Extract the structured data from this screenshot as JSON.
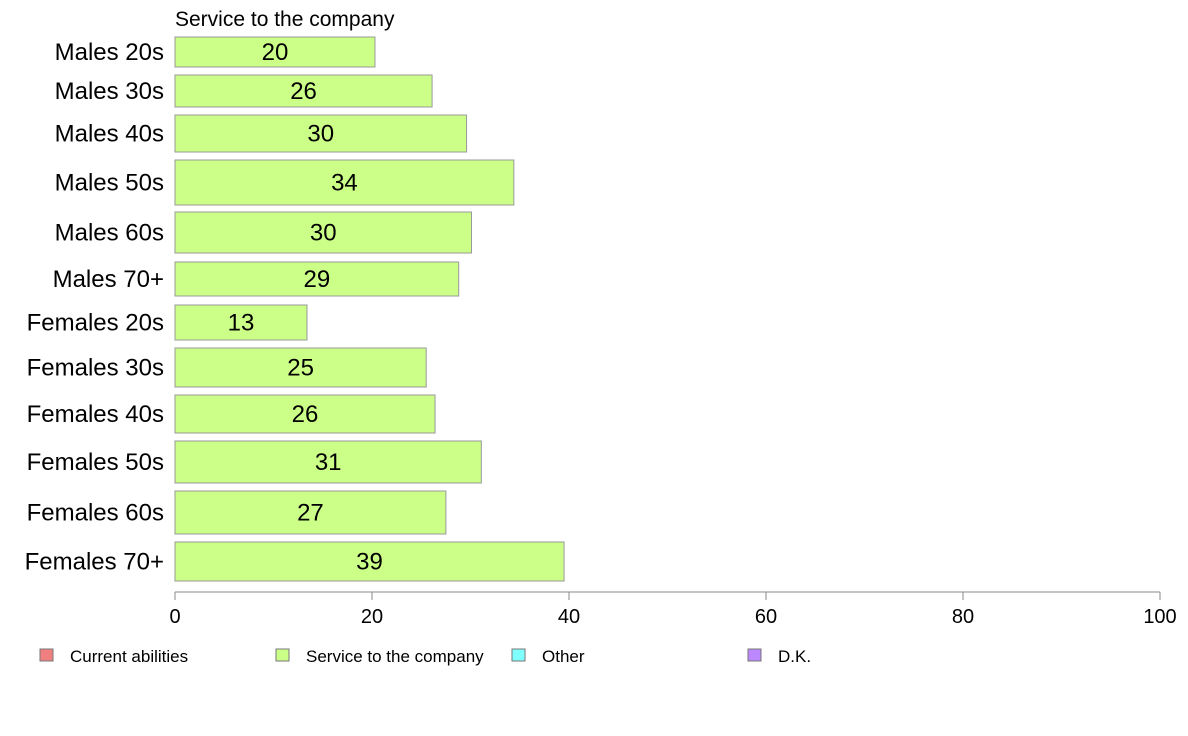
{
  "chart_data": {
    "type": "bar",
    "orientation": "horizontal",
    "title": "",
    "series_title": "Service to the company",
    "categories": [
      "Males 20s",
      "Males 30s",
      "Males 40s",
      "Males 50s",
      "Males 60s",
      "Males 70+",
      "Females 20s",
      "Females 30s",
      "Females 40s",
      "Females 50s",
      "Females 60s",
      "Females 70+"
    ],
    "series": [
      {
        "name": "Service to the company",
        "color": "#ccff88",
        "values": [
          20.3,
          26.1,
          29.6,
          34.4,
          30.1,
          28.8,
          13.4,
          25.5,
          26.4,
          31.1,
          27.5,
          39.5
        ]
      }
    ],
    "data_labels": [
      "20",
      "26",
      "30",
      "34",
      "30",
      "29",
      "13",
      "25",
      "26",
      "31",
      "27",
      "39"
    ],
    "xlim": [
      0,
      100
    ],
    "xticks": [
      0,
      20,
      40,
      60,
      80,
      100
    ],
    "grid": false,
    "legend_position": "bottom",
    "legend": [
      {
        "label": "Current abilities",
        "color": "#f08080"
      },
      {
        "label": "Service to the company",
        "color": "#ccff88"
      },
      {
        "label": "Other",
        "color": "#80ffff"
      },
      {
        "label": "D.K.",
        "color": "#bb88ff"
      }
    ],
    "bar_stroke": "#999999",
    "axis_color": "#888888"
  }
}
